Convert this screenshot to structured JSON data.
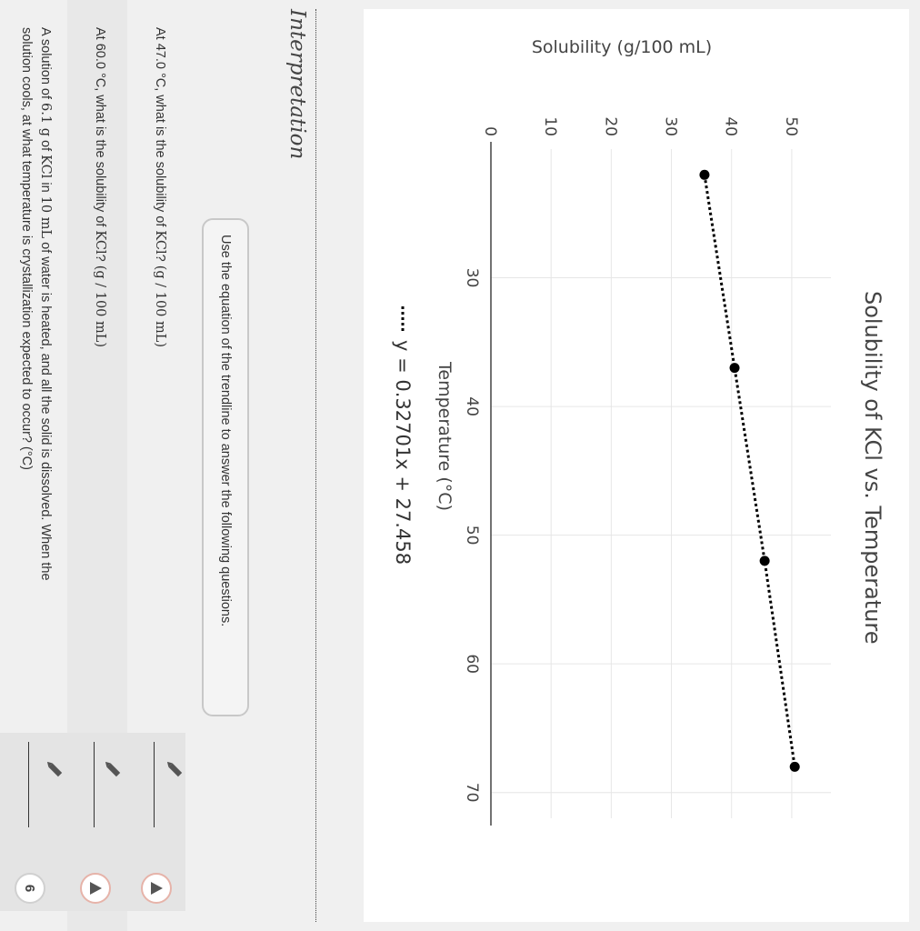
{
  "chart_data": {
    "type": "scatter",
    "title": "Solubility of KCl vs. Temperature",
    "xlabel": "Temperature (°C)",
    "ylabel": "Solubility (g/100 mL)",
    "xlim": [
      20,
      72
    ],
    "ylim": [
      0,
      55
    ],
    "xticks": [
      30,
      40,
      50,
      60,
      70
    ],
    "yticks": [
      0,
      10,
      20,
      30,
      40,
      50
    ],
    "grid": true,
    "series": [
      {
        "name": "",
        "x": [
          22,
          37,
          52,
          68
        ],
        "y": [
          35.5,
          40.5,
          45.5,
          50.5
        ],
        "marker": "circle",
        "color": "#000000"
      }
    ],
    "trendline": {
      "label": "y = 0.32701x + 27.458",
      "slope": 0.32701,
      "intercept": 27.458,
      "style": "dotted",
      "color": "#000000"
    },
    "legend_placement": "bottom"
  },
  "section": {
    "heading": "Interpretation",
    "hint": "Use the equation of the trendline to answer the following questions."
  },
  "questions": [
    {
      "prefix": "At 47.0 °C, what is the solubility of ",
      "formula": "KCl",
      "suffix": "? ",
      "unit": "(g / 100 mL)"
    },
    {
      "prefix": "At 60.0 °C, what is the solubility of ",
      "formula": "KCl",
      "suffix": "? ",
      "unit": "(g / 100 mL)"
    },
    {
      "line1_a": "A solution of ",
      "line1_mass": "6.1 g",
      "line1_b": " of ",
      "line1_formula": "KCl",
      "line1_c": " in ",
      "line1_vol": "10 mL",
      "line1_d": " of water is heated, and all the solid is dissolved. When the",
      "line2": "solution cools, at what temperature is crystallization expected to occur? (°C)",
      "attempts": "6"
    }
  ],
  "colors": {
    "warning_border": "#e6b3a9",
    "grid": "#e6e6e6",
    "marker": "#000000"
  }
}
